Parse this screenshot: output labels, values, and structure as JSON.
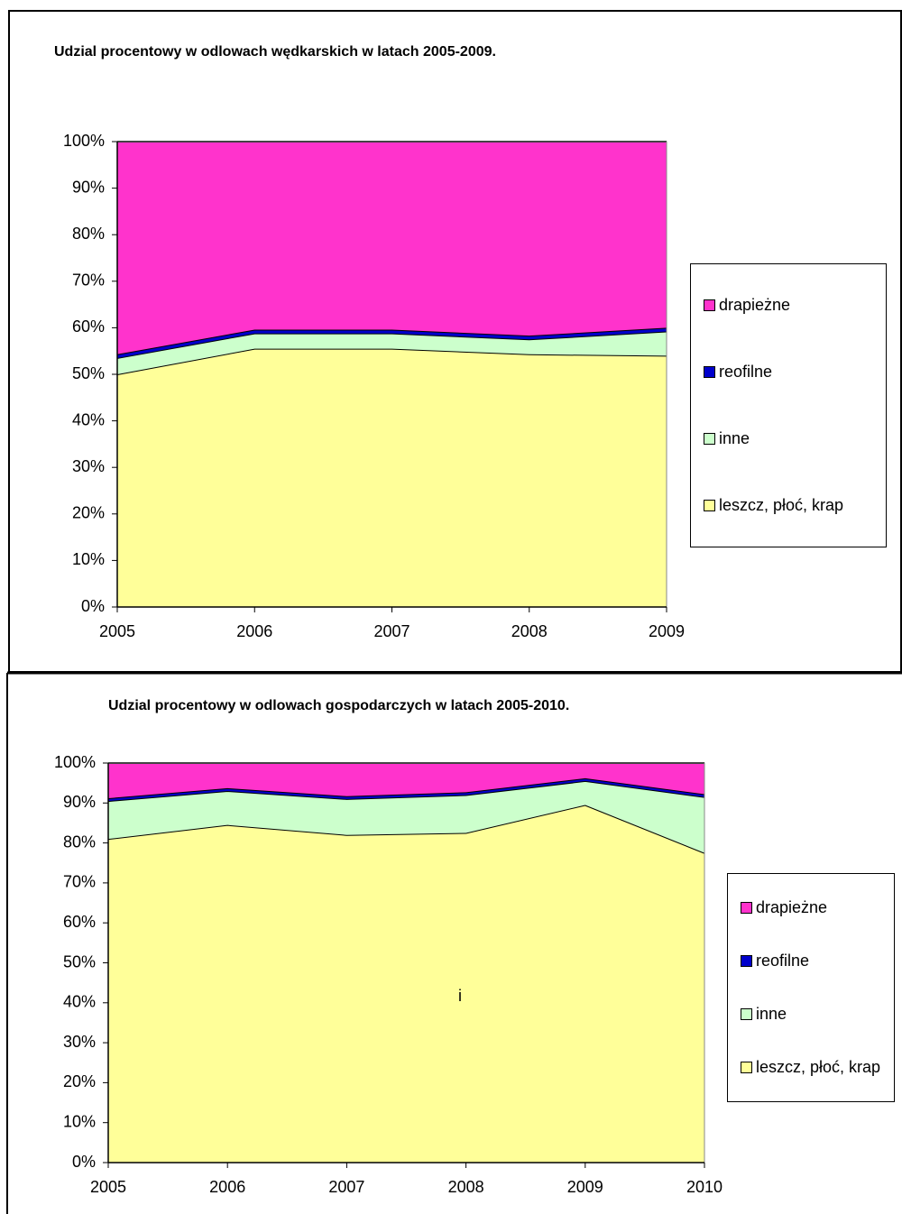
{
  "chart_data": [
    {
      "type": "stacked_area",
      "title": "Udzial procentowy w odlowach wędkarskich w latach 2005-2009.",
      "x": [
        2005,
        2006,
        2007,
        2008,
        2009
      ],
      "xlim": [
        2005,
        2009
      ],
      "xticks": [
        2005,
        2006,
        2007,
        2008,
        2009
      ],
      "ylim": [
        0,
        100
      ],
      "yticks": [
        {
          "value": 0,
          "label": "0%"
        },
        {
          "value": 10,
          "label": "10%"
        },
        {
          "value": 20,
          "label": "20%"
        },
        {
          "value": 30,
          "label": "30%"
        },
        {
          "value": 40,
          "label": "40%"
        },
        {
          "value": 50,
          "label": "50%"
        },
        {
          "value": 60,
          "label": "60%"
        },
        {
          "value": 70,
          "label": "70%"
        },
        {
          "value": 80,
          "label": "80%"
        },
        {
          "value": 90,
          "label": "90%"
        },
        {
          "value": 100,
          "label": "100%"
        }
      ],
      "grid": false,
      "legend": "right",
      "series": [
        {
          "name": "leszcz, płoć, krap",
          "color": "#ffff99",
          "values": [
            50,
            55.5,
            55.5,
            54.3,
            54
          ]
        },
        {
          "name": "inne",
          "color": "#ccffcc",
          "values": [
            3.5,
            3.3,
            3.3,
            3.2,
            5.2
          ]
        },
        {
          "name": "reofilne",
          "color": "#0000cc",
          "values": [
            0.8,
            0.8,
            0.8,
            0.8,
            0.8
          ]
        },
        {
          "name": "drapieżne",
          "color": "#ff33cc",
          "values": [
            45.7,
            40.4,
            40.4,
            41.7,
            40
          ]
        }
      ]
    },
    {
      "type": "stacked_area",
      "title": "Udzial procentowy w odlowach gospodarczych w latach 2005-2010.",
      "x": [
        2005,
        2006,
        2007,
        2008,
        2009,
        2010
      ],
      "xlim": [
        2005,
        2010
      ],
      "xticks": [
        2005,
        2006,
        2007,
        2008,
        2009,
        2010
      ],
      "ylim": [
        0,
        100
      ],
      "yticks": [
        {
          "value": 0,
          "label": "0%"
        },
        {
          "value": 10,
          "label": "10%"
        },
        {
          "value": 20,
          "label": "20%"
        },
        {
          "value": 30,
          "label": "30%"
        },
        {
          "value": 40,
          "label": "40%"
        },
        {
          "value": 50,
          "label": "50%"
        },
        {
          "value": 60,
          "label": "60%"
        },
        {
          "value": 70,
          "label": "70%"
        },
        {
          "value": 80,
          "label": "80%"
        },
        {
          "value": 90,
          "label": "90%"
        },
        {
          "value": 100,
          "label": "100%"
        }
      ],
      "grid": false,
      "legend": "right",
      "annotation": "i",
      "series": [
        {
          "name": "leszcz, płoć, krap",
          "color": "#ffff99",
          "values": [
            81,
            84.5,
            82,
            82.5,
            89.5,
            77.5
          ]
        },
        {
          "name": "inne",
          "color": "#ccffcc",
          "values": [
            9.5,
            8.5,
            9,
            9.5,
            6,
            14
          ]
        },
        {
          "name": "reofilne",
          "color": "#0000cc",
          "values": [
            0.7,
            0.7,
            0.7,
            0.7,
            0.7,
            0.7
          ]
        },
        {
          "name": "drapieżne",
          "color": "#ff33cc",
          "values": [
            8.8,
            6.3,
            8.3,
            7.3,
            3.8,
            7.8
          ]
        }
      ]
    }
  ]
}
